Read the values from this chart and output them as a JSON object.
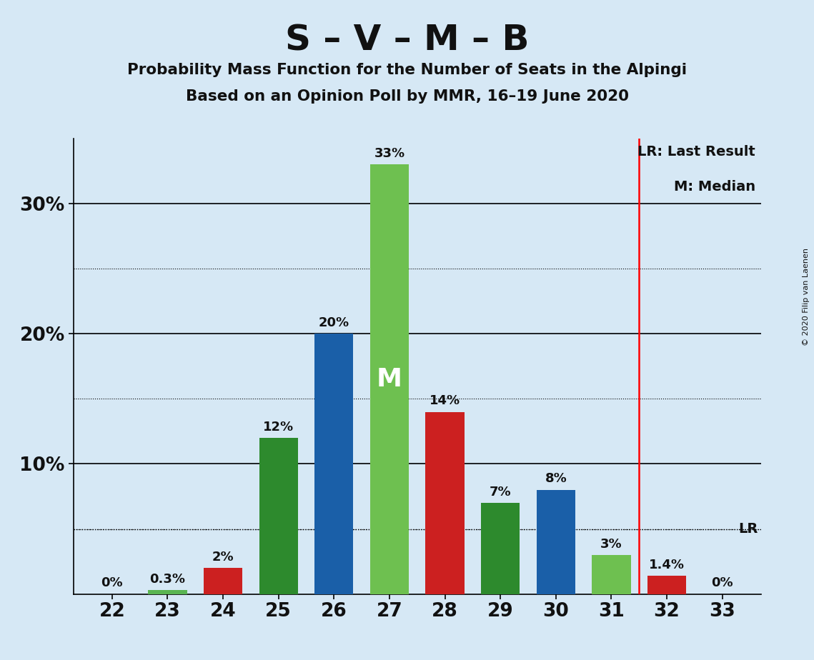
{
  "title_main": "S – V – M – B",
  "subtitle1": "Probability Mass Function for the Number of Seats in the Alpingi",
  "subtitle2": "Based on an Opinion Poll by MMR, 16–19 June 2020",
  "copyright": "© 2020 Filip van Laenen",
  "seats": [
    22,
    23,
    24,
    25,
    26,
    27,
    28,
    29,
    30,
    31,
    32,
    33
  ],
  "probabilities": [
    0.0,
    0.3,
    2.0,
    12.0,
    20.0,
    33.0,
    14.0,
    7.0,
    8.0,
    3.0,
    1.4,
    0.0
  ],
  "labels": [
    "0%",
    "0.3%",
    "2%",
    "12%",
    "20%",
    "33%",
    "14%",
    "7%",
    "8%",
    "3%",
    "1.4%",
    "0%"
  ],
  "bar_colors": [
    "#5ab552",
    "#5ab552",
    "#cc2020",
    "#2d8a2d",
    "#1a5fa8",
    "#6ec050",
    "#cc2020",
    "#2d8a2d",
    "#1a5fa8",
    "#6ec050",
    "#cc2020",
    "#cc2020"
  ],
  "median_seat": 27,
  "lr_seat": 31.5,
  "lr_value": 5.0,
  "background_color": "#d6e8f5",
  "ylim_max": 35,
  "dotted_yticks": [
    5,
    15,
    25
  ],
  "solid_yticks": [
    10,
    20,
    30
  ],
  "legend_lr": "LR: Last Result",
  "legend_m": "M: Median",
  "ytick_labels": [
    "10%",
    "20%",
    "30%"
  ],
  "ytick_positions": [
    10,
    20,
    30
  ]
}
